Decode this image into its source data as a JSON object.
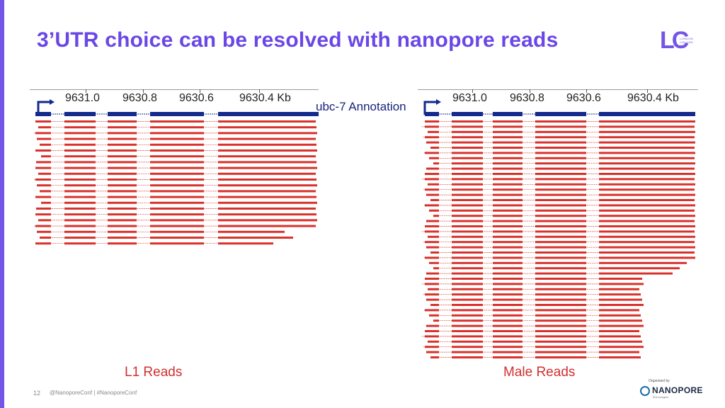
{
  "colors": {
    "accent": "#7356e6",
    "title": "#6a47e6",
    "read": "#d9312b",
    "annotation": "#142a8c",
    "caption_red": "#d32f2f"
  },
  "slide": {
    "title": "3’UTR choice can be resolved with nanopore reads",
    "logo": {
      "mark": "LC",
      "small_lines": [
        "LONDON",
        "CALLING",
        "2019"
      ]
    },
    "annotation_label": "ubc-7 Annotation",
    "page_number": "12",
    "footer": "@NanoporeConf | #NanoporeConf",
    "organised_by": "Organised by",
    "sponsor": {
      "name": "NANOPORE",
      "sub": "Technologies",
      "icon": "nanopore-logo-icon"
    }
  },
  "panels": [
    {
      "id": "left",
      "caption": "L1 Reads",
      "ticks": [
        "9631.0",
        "9630.8",
        "9630.6",
        "9630.4 Kb"
      ],
      "read_count": 22
    },
    {
      "id": "right",
      "caption": "Male Reads",
      "ticks": [
        "9631.0",
        "9630.8",
        "9630.6",
        "9630.4 Kb"
      ],
      "read_count": 46
    }
  ]
}
